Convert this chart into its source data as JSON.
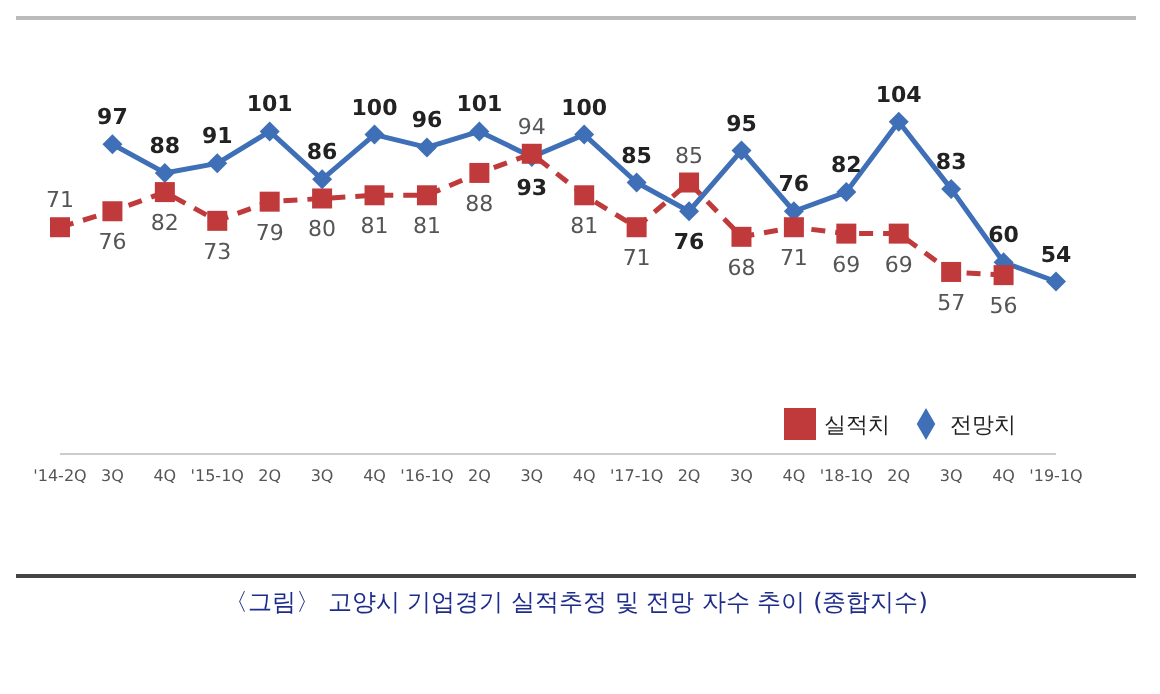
{
  "chart_data": {
    "type": "line",
    "title": "〈그림〉 고양시 기업경기 실적추정 및 전망 자수 추이 (종합지수)",
    "categories": [
      "'14-2Q",
      "3Q",
      "4Q",
      "'15-1Q",
      "2Q",
      "3Q",
      "4Q",
      "'16-1Q",
      "2Q",
      "3Q",
      "4Q",
      "'17-1Q",
      "2Q",
      "3Q",
      "4Q",
      "'18-1Q",
      "2Q",
      "3Q",
      "4Q",
      "'19-1Q"
    ],
    "series": [
      {
        "name": "전망치",
        "color": "#3f6fb6",
        "marker": "diamond",
        "line_style": "solid",
        "values": [
          null,
          97,
          88,
          91,
          101,
          86,
          100,
          96,
          101,
          93,
          100,
          85,
          76,
          95,
          76,
          82,
          104,
          83,
          60,
          54
        ]
      },
      {
        "name": "실적치",
        "color": "#c0393b",
        "marker": "square",
        "line_style": "dashed",
        "values": [
          71,
          76,
          82,
          73,
          79,
          80,
          81,
          81,
          88,
          94,
          81,
          71,
          85,
          68,
          71,
          69,
          69,
          57,
          56,
          null
        ]
      }
    ],
    "data_labels": true,
    "legend": "bottom right"
  }
}
